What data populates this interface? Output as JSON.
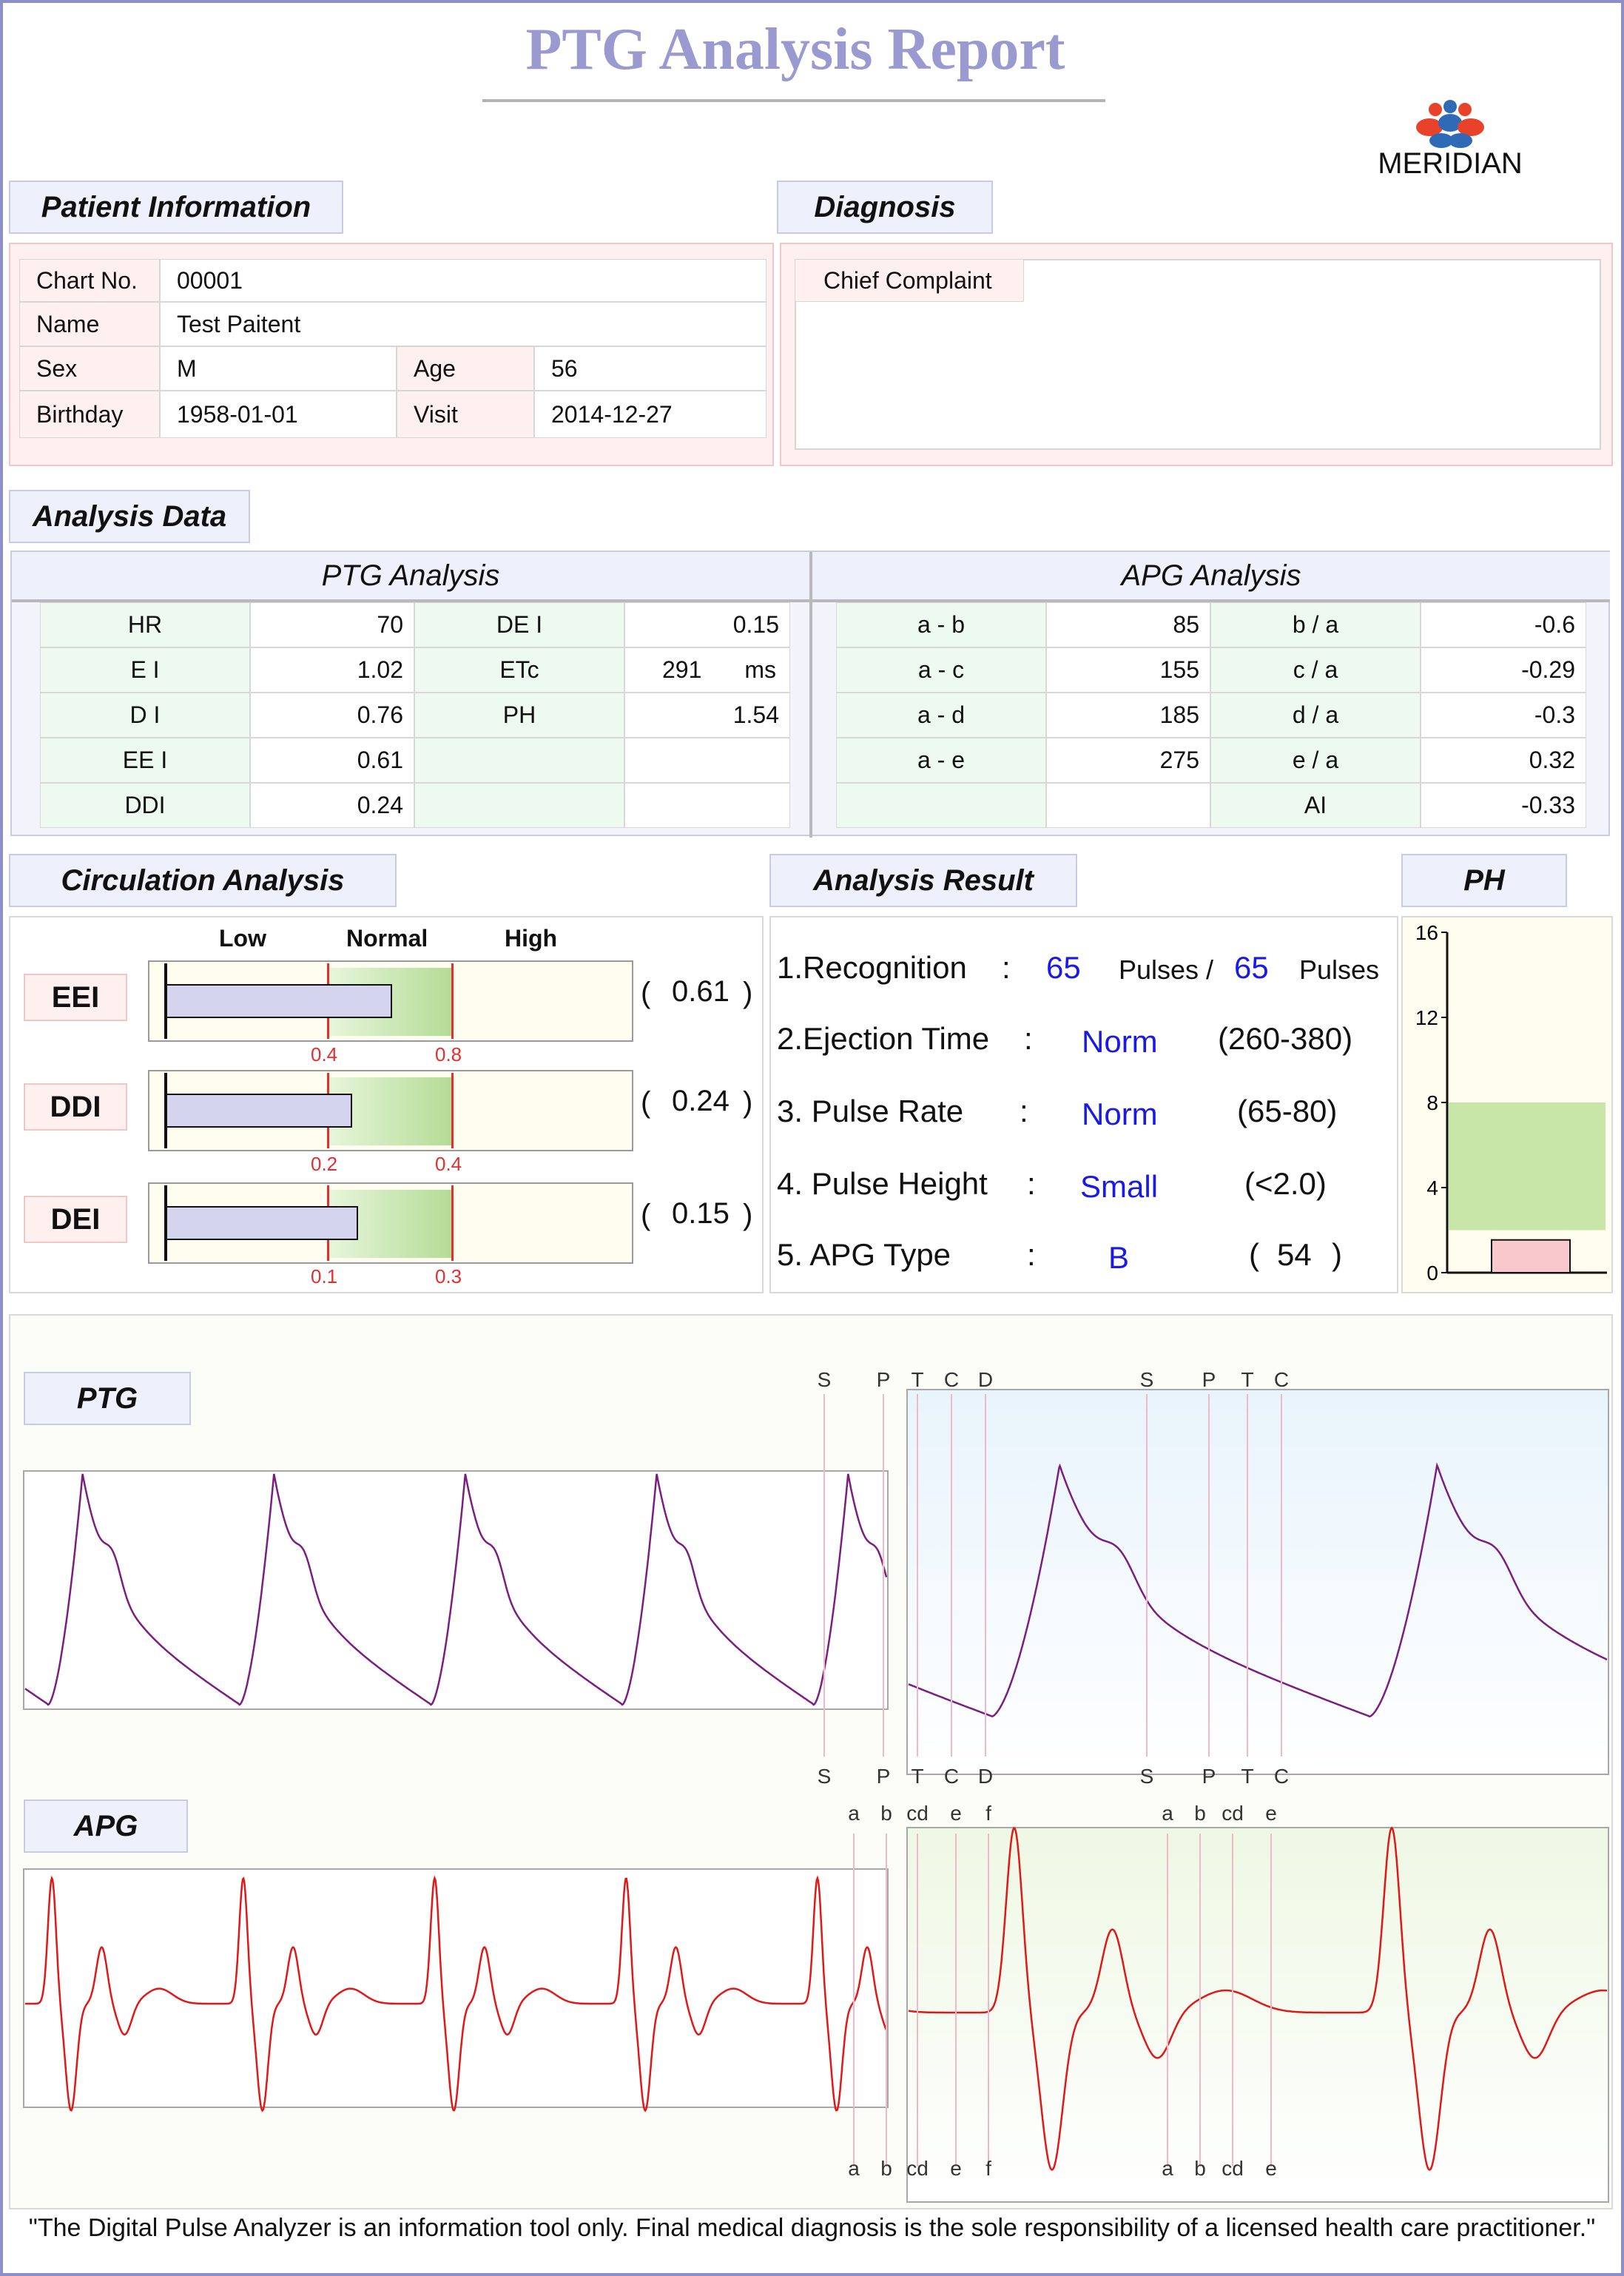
{
  "report": {
    "title": "PTG  Analysis Report",
    "logo_text": "MERIDIAN",
    "footer": "\"The Digital Pulse Analyzer is an information tool only. Final medical diagnosis is the sole responsibility of a licensed health care practitioner.\""
  },
  "patient": {
    "heading": "Patient Information",
    "chart_no_label": "Chart No.",
    "chart_no": "00001",
    "name_label": "Name",
    "name": "Test Paitent",
    "sex_label": "Sex",
    "sex": "M",
    "age_label": "Age",
    "age": "56",
    "birthday_label": "Birthday",
    "birthday": "1958-01-01",
    "visit_label": "Visit",
    "visit": "2014-12-27"
  },
  "diagnosis": {
    "heading": "Diagnosis",
    "chief_complaint_label": "Chief Complaint",
    "chief_complaint": ""
  },
  "analysis_data": {
    "heading": "Analysis Data",
    "ptg_heading": "PTG Analysis",
    "apg_heading": "APG Analysis",
    "ptg_rows": [
      {
        "k1": "HR",
        "v1": "70",
        "k2": "DE I",
        "v2": "0.15"
      },
      {
        "k1": "E I",
        "v1": "1.02",
        "k2": "ETc",
        "v2": "291",
        "unit2": "ms"
      },
      {
        "k1": "D I",
        "v1": "0.76",
        "k2": "PH",
        "v2": "1.54"
      },
      {
        "k1": "EE I",
        "v1": "0.61",
        "k2": "",
        "v2": ""
      },
      {
        "k1": "DDI",
        "v1": "0.24",
        "k2": "",
        "v2": ""
      }
    ],
    "apg_rows": [
      {
        "k1": "a - b",
        "v1": "85",
        "k2": "b / a",
        "v2": "-0.6"
      },
      {
        "k1": "a - c",
        "v1": "155",
        "k2": "c / a",
        "v2": "-0.29"
      },
      {
        "k1": "a - d",
        "v1": "185",
        "k2": "d / a",
        "v2": "-0.3"
      },
      {
        "k1": "a - e",
        "v1": "275",
        "k2": "e / a",
        "v2": "0.32"
      },
      {
        "k1": "",
        "v1": "",
        "k2": "AI",
        "v2": "-0.33"
      }
    ]
  },
  "circulation": {
    "heading": "Circulation Analysis",
    "col_low": "Low",
    "col_normal": "Normal",
    "col_high": "High",
    "bars": [
      {
        "label": "EEI",
        "value": 0.61,
        "value_text": "0.61",
        "lo": 0.4,
        "hi": 0.8,
        "lo_text": "0.4",
        "hi_text": "0.8"
      },
      {
        "label": "DDI",
        "value": 0.24,
        "value_text": "0.24",
        "lo": 0.2,
        "hi": 0.4,
        "lo_text": "0.2",
        "hi_text": "0.4"
      },
      {
        "label": "DEI",
        "value": 0.15,
        "value_text": "0.15",
        "lo": 0.1,
        "hi": 0.3,
        "lo_text": "0.1",
        "hi_text": "0.3"
      }
    ]
  },
  "analysis_result": {
    "heading": "Analysis Result",
    "r1_label": "1.Recognition",
    "r1_colon": ":",
    "r1_count": "65",
    "r1_mid": "Pulses /",
    "r1_total": "65",
    "r1_end": "Pulses",
    "r2_label": "2.Ejection Time",
    "r2_colon": ":",
    "r2_value": "Norm",
    "r2_range": "(260-380)",
    "r3_label": "3. Pulse Rate",
    "r3_colon": ":",
    "r3_value": "Norm",
    "r3_range": "(65-80)",
    "r4_label": "4. Pulse Height",
    "r4_colon": ":",
    "r4_value": "Small",
    "r4_range": "(<2.0)",
    "r5_label": "5. APG Type",
    "r5_colon": ":",
    "r5_value": "B",
    "r5_open": "(",
    "r5_num": "54",
    "r5_close": ")"
  },
  "chart_data": [
    {
      "type": "bar",
      "title": "PH",
      "ylim": [
        0,
        16
      ],
      "yticks": [
        "16",
        "12",
        "8",
        "4",
        "0"
      ],
      "normal_band": [
        2,
        8
      ],
      "categories": [
        "PH"
      ],
      "values": [
        1.54
      ],
      "colors": {
        "band": "#c8e6a8",
        "bar": "#f8c8cc"
      }
    },
    {
      "type": "line",
      "title": "PTG",
      "marks_top": [
        "S",
        "P",
        "T",
        "C",
        "D",
        "S",
        "P",
        "T",
        "C"
      ],
      "marks_bottom": [
        "S",
        "P",
        "T",
        "C",
        "D",
        "S",
        "P",
        "T",
        "C"
      ],
      "color": "#7a1f80"
    },
    {
      "type": "line",
      "title": "APG",
      "marks_top": [
        "a",
        "b",
        "cd",
        "e",
        "f",
        "a",
        "b",
        "cd",
        "e"
      ],
      "marks_bottom": [
        "a",
        "b",
        "cd",
        "e",
        "f",
        "a",
        "b",
        "cd",
        "e"
      ],
      "color": "#e01818"
    }
  ]
}
